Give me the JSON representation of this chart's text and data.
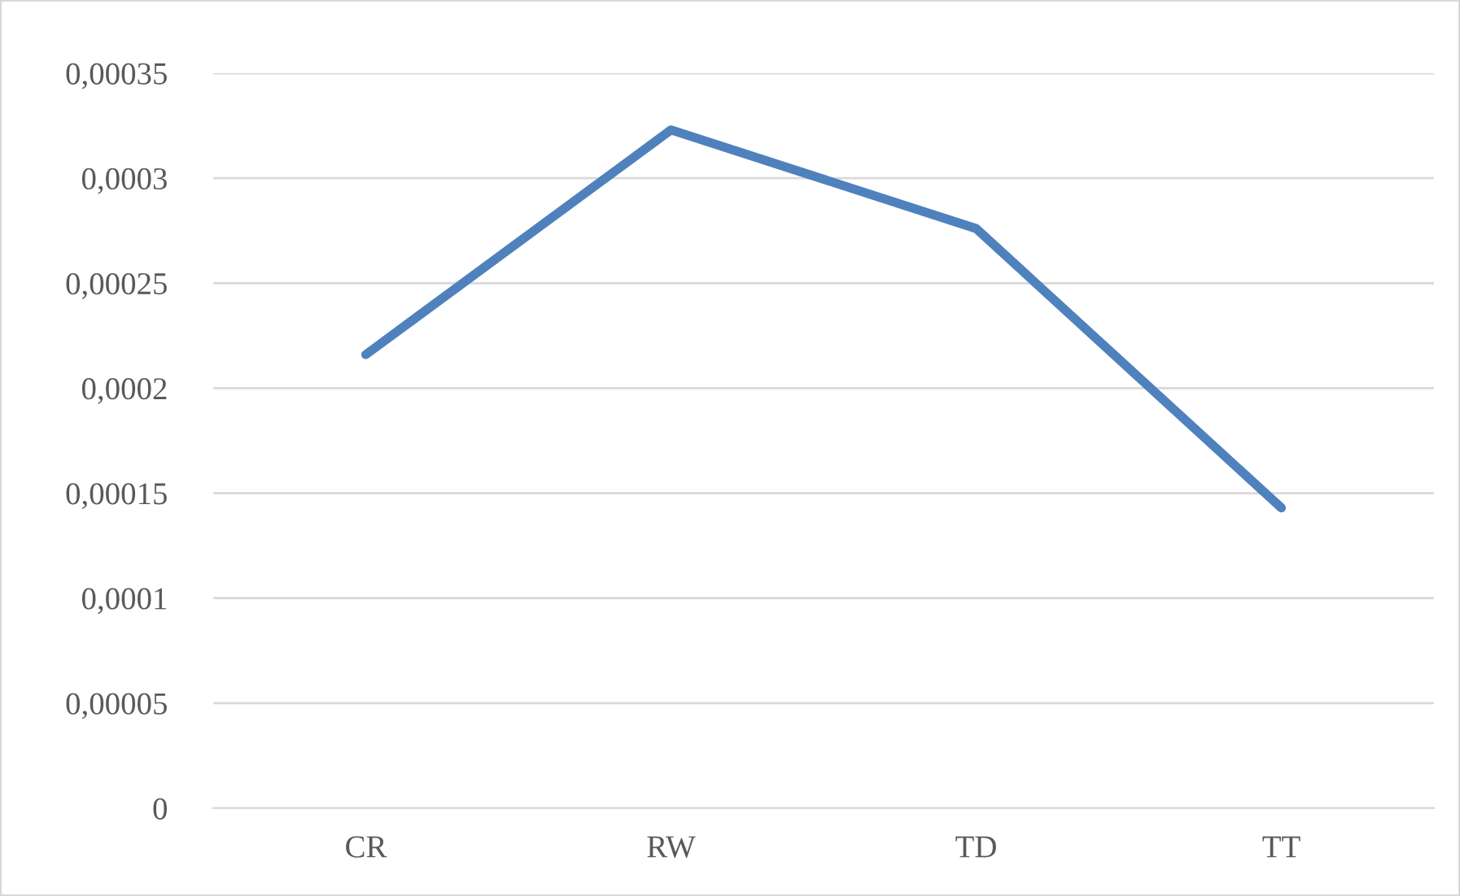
{
  "chart_data": {
    "type": "line",
    "categories": [
      "CR",
      "RW",
      "TD",
      "TT"
    ],
    "series": [
      {
        "color": "#4f81bd",
        "values": [
          0.000216,
          0.000323,
          0.000276,
          0.000143
        ]
      }
    ],
    "ylim": [
      0,
      0.00035
    ],
    "yticks": [
      0,
      {
        "value": 5e-05,
        "label": "0,00005"
      },
      {
        "value": 0.0001,
        "label": "0,0001"
      },
      {
        "value": 0.00015,
        "label": "0,00015"
      },
      {
        "value": 0.0002,
        "label": "0,0002"
      },
      {
        "value": 0.00025,
        "label": "0,00025"
      },
      {
        "value": 0.0003,
        "label": "0,0003"
      },
      {
        "value": 0.00035,
        "label": "0,00035"
      }
    ],
    "grid": "y",
    "marker": "none",
    "line_style": "solid"
  }
}
